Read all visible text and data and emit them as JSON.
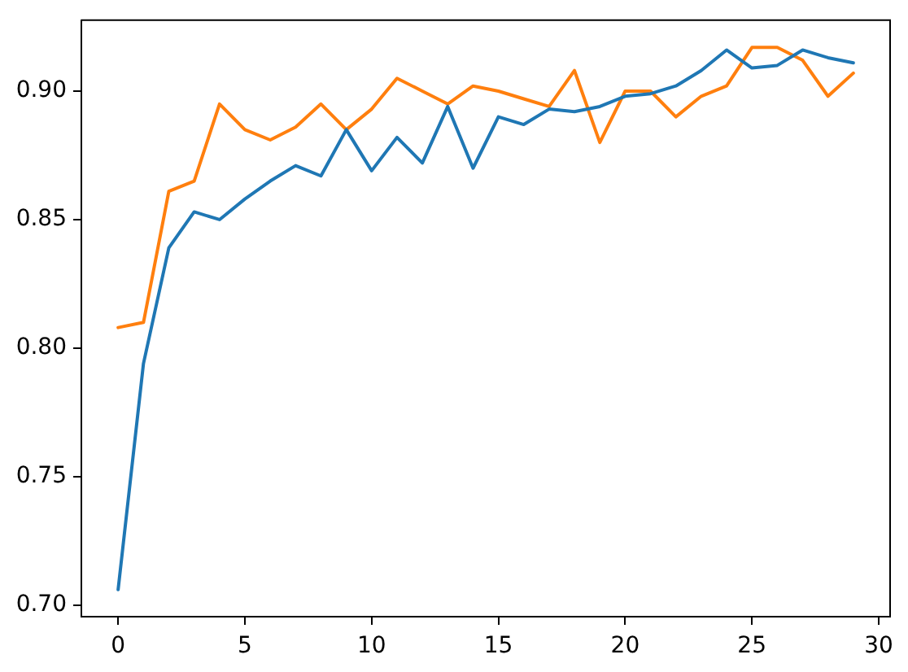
{
  "chart_data": {
    "type": "line",
    "x": [
      0,
      1,
      2,
      3,
      4,
      5,
      6,
      7,
      8,
      9,
      10,
      11,
      12,
      13,
      14,
      15,
      16,
      17,
      18,
      19,
      20,
      21,
      22,
      23,
      24,
      25,
      26,
      27,
      28,
      29
    ],
    "series": [
      {
        "color": "#1f77b4",
        "values": [
          0.706,
          0.794,
          0.839,
          0.853,
          0.85,
          0.858,
          0.865,
          0.871,
          0.867,
          0.885,
          0.869,
          0.882,
          0.872,
          0.894,
          0.87,
          0.89,
          0.887,
          0.893,
          0.892,
          0.894,
          0.898,
          0.899,
          0.902,
          0.908,
          0.916,
          0.909,
          0.91,
          0.916,
          0.913,
          0.911
        ]
      },
      {
        "color": "#ff7f0e",
        "values": [
          0.808,
          0.81,
          0.861,
          0.865,
          0.895,
          0.885,
          0.881,
          0.886,
          0.895,
          0.885,
          0.893,
          0.905,
          0.9,
          0.895,
          0.902,
          0.9,
          0.897,
          0.894,
          0.908,
          0.88,
          0.9,
          0.9,
          0.89,
          0.898,
          0.902,
          0.917,
          0.917,
          0.912,
          0.898,
          0.907
        ]
      }
    ],
    "xlim": [
      -1.45,
      30.45
    ],
    "xticks": [
      0,
      5,
      10,
      15,
      20,
      25,
      30
    ],
    "ylim": [
      0.6955,
      0.9276
    ],
    "yticks": [
      {
        "value": 0.7,
        "label": "0.70"
      },
      {
        "value": 0.75,
        "label": "0.75"
      },
      {
        "value": 0.8,
        "label": "0.80"
      },
      {
        "value": 0.85,
        "label": "0.85"
      },
      {
        "value": 0.9,
        "label": "0.90"
      }
    ],
    "grid": false
  }
}
